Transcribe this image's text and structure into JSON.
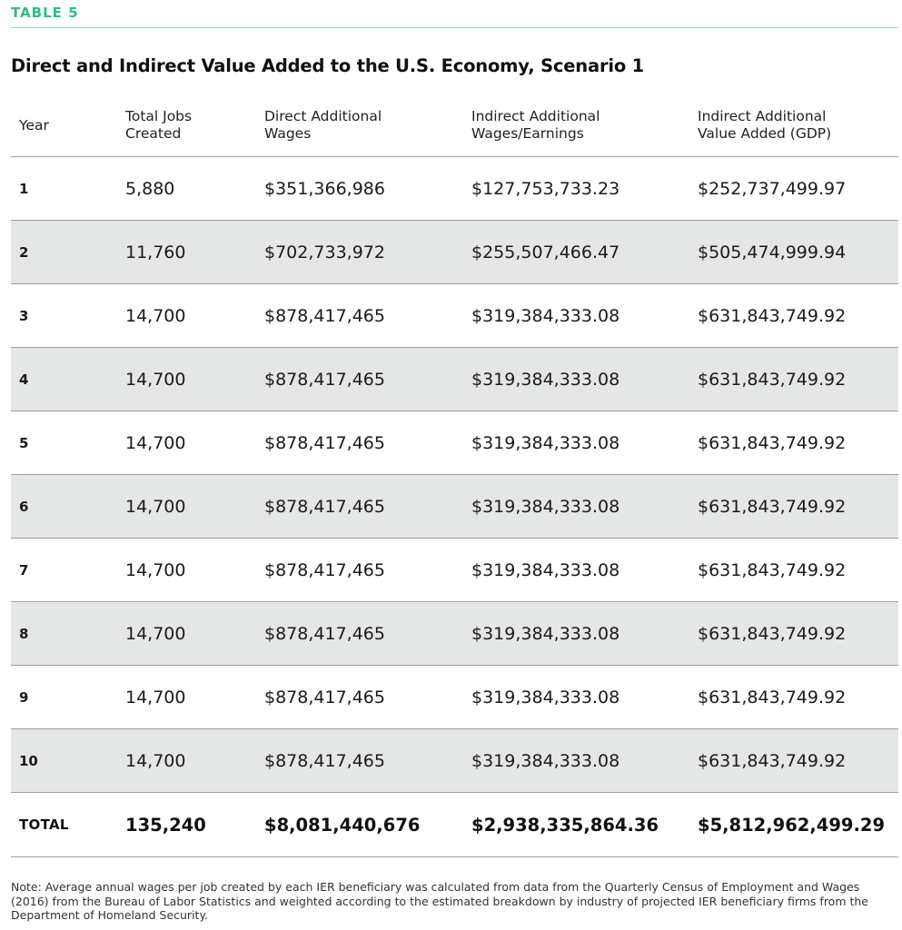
{
  "label": "TABLE 5",
  "title": "Direct and Indirect Value Added to the U.S. Economy, Scenario 1",
  "table": {
    "headers": [
      "Year",
      "Total Jobs\nCreated",
      "Direct Additional\nWages",
      "Indirect Additional\nWages/Earnings",
      "Indirect Additional\nValue Added (GDP)"
    ],
    "rows": [
      [
        "1",
        "5,880",
        "$351,366,986",
        "$127,753,733.23",
        "$252,737,499.97"
      ],
      [
        "2",
        "11,760",
        "$702,733,972",
        "$255,507,466.47",
        "$505,474,999.94"
      ],
      [
        "3",
        "14,700",
        "$878,417,465",
        "$319,384,333.08",
        "$631,843,749.92"
      ],
      [
        "4",
        "14,700",
        "$878,417,465",
        "$319,384,333.08",
        "$631,843,749.92"
      ],
      [
        "5",
        "14,700",
        "$878,417,465",
        "$319,384,333.08",
        "$631,843,749.92"
      ],
      [
        "6",
        "14,700",
        "$878,417,465",
        "$319,384,333.08",
        "$631,843,749.92"
      ],
      [
        "7",
        "14,700",
        "$878,417,465",
        "$319,384,333.08",
        "$631,843,749.92"
      ],
      [
        "8",
        "14,700",
        "$878,417,465",
        "$319,384,333.08",
        "$631,843,749.92"
      ],
      [
        "9",
        "14,700",
        "$878,417,465",
        "$319,384,333.08",
        "$631,843,749.92"
      ],
      [
        "10",
        "14,700",
        "$878,417,465",
        "$319,384,333.08",
        "$631,843,749.92"
      ]
    ],
    "total": [
      "TOTAL",
      "135,240",
      "$8,081,440,676",
      "$2,938,335,864.36",
      "$5,812,962,499.29"
    ]
  },
  "note": "Note: Average annual wages per job created by each IER beneficiary was calculated from data from the Quarterly Census of Employment and Wages (2016) from the Bureau of Labor Statistics and weighted according to the estimated breakdown by industry of projected IER beneficiary firms from the Department of Homeland Security.",
  "colors": {
    "label": "#2cc07c",
    "shaded_row": "#e4e7e5",
    "rule": "#9aa0a0"
  }
}
